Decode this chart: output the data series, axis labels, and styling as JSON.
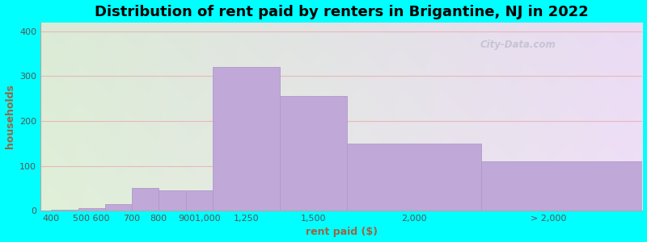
{
  "title": "Distribution of rent paid by renters in Brigantine, NJ in 2022",
  "xlabel": "rent paid ($)",
  "ylabel": "households",
  "background_color": "#00FFFF",
  "bar_color": "#c0a8d8",
  "bar_edge_color": "#b09ac8",
  "xlabels": [
    "400",
    "500",
    "600",
    "700",
    "800",
    "9001,000",
    "1,250",
    "1,500",
    "2,000",
    "> 2,000"
  ],
  "bar_lefts": [
    400,
    500,
    600,
    700,
    800,
    900,
    1000,
    1250,
    1500,
    2000
  ],
  "bar_widths": [
    100,
    100,
    100,
    100,
    100,
    100,
    250,
    250,
    500,
    600
  ],
  "bar_heights": [
    2,
    5,
    15,
    50,
    45,
    45,
    320,
    255,
    150,
    110
  ],
  "ylim": [
    0,
    420
  ],
  "xlim_left": 360,
  "xlim_right": 2600,
  "yticks": [
    0,
    100,
    200,
    300,
    400
  ],
  "xtick_labels": [
    "400",
    "500 600",
    "700",
    "800",
    "9001,000",
    "1,250",
    "1,500",
    "2,000",
    "> 2,000",
    ""
  ],
  "watermark": "City-Data.com",
  "title_fontsize": 13,
  "axis_label_fontsize": 9,
  "tick_fontsize": 8,
  "label_color": "#996644"
}
